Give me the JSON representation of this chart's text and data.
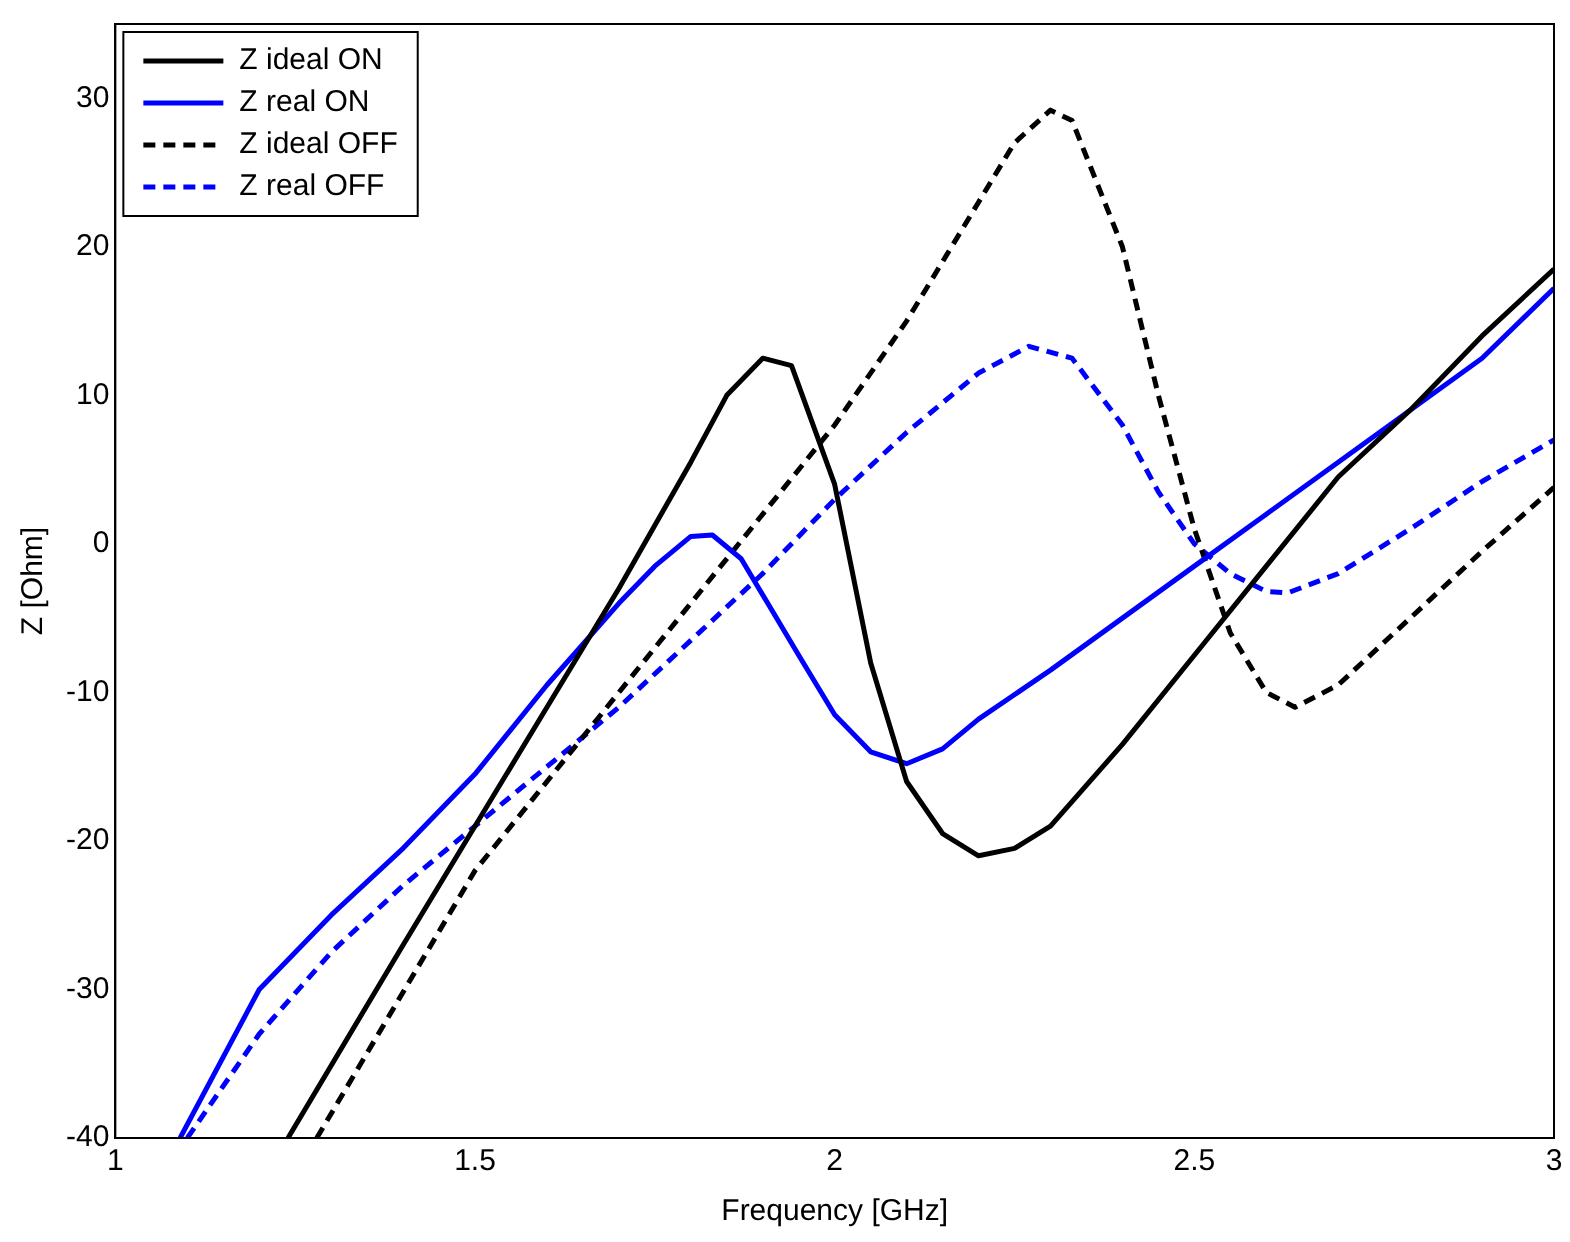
{
  "chart_data": {
    "type": "line",
    "xlabel": "Frequency [GHz]",
    "ylabel": "Z [Ohm]",
    "xlim": [
      1,
      3
    ],
    "xticks": [
      1,
      1.5,
      2,
      2.5,
      3
    ],
    "ylim": [
      -40,
      35
    ],
    "yticks": [
      -40,
      -30,
      -20,
      -10,
      0,
      10,
      20,
      30
    ],
    "grid": false,
    "legend": "top left",
    "marker": "none",
    "series": [
      {
        "name": "Z ideal ON",
        "color": "#000000",
        "line_style": "solid",
        "x": [
          1.24,
          1.4,
          1.6,
          1.7,
          1.8,
          1.85,
          1.9,
          1.94,
          2.0,
          2.05,
          2.1,
          2.15,
          2.2,
          2.25,
          2.3,
          2.4,
          2.5,
          2.6,
          2.7,
          2.8,
          2.9,
          3.0
        ],
        "values": [
          -40,
          -27,
          -11,
          -3,
          5.5,
          10,
          12.5,
          12,
          4,
          -8,
          -16,
          -19.5,
          -21,
          -20.5,
          -19,
          -13.5,
          -7.5,
          -1.5,
          4.5,
          9,
          14,
          18.5
        ]
      },
      {
        "name": "Z real ON",
        "color": "#0000ff",
        "line_style": "solid",
        "x": [
          1.09,
          1.2,
          1.3,
          1.4,
          1.5,
          1.6,
          1.7,
          1.75,
          1.8,
          1.83,
          1.87,
          1.95,
          2.0,
          2.05,
          2.1,
          2.15,
          2.2,
          2.3,
          2.4,
          2.5,
          2.6,
          2.7,
          2.8,
          2.9,
          3.0
        ],
        "values": [
          -40,
          -30,
          -25,
          -20.5,
          -15.5,
          -9.5,
          -4,
          -1.5,
          0.5,
          0.6,
          -1,
          -7.5,
          -11.5,
          -14,
          -14.8,
          -13.8,
          -11.8,
          -8.5,
          -5,
          -1.5,
          2,
          5.5,
          9,
          12.5,
          17.2
        ]
      },
      {
        "name": "Z ideal OFF",
        "color": "#000000",
        "line_style": "dashed",
        "x": [
          1.28,
          1.5,
          1.8,
          2.0,
          2.1,
          2.2,
          2.25,
          2.3,
          2.33,
          2.4,
          2.45,
          2.5,
          2.55,
          2.6,
          2.64,
          2.7,
          2.8,
          2.9,
          3.0
        ],
        "values": [
          -40,
          -22,
          -4,
          8,
          15,
          23,
          27,
          29.2,
          28.5,
          20,
          10,
          1,
          -6,
          -10,
          -11,
          -9.5,
          -5,
          -0.5,
          3.8
        ]
      },
      {
        "name": "Z real OFF",
        "color": "#0000ff",
        "line_style": "dashed",
        "x": [
          1.1,
          1.2,
          1.3,
          1.4,
          1.5,
          1.6,
          1.7,
          1.8,
          1.9,
          2.0,
          2.1,
          2.2,
          2.27,
          2.33,
          2.4,
          2.45,
          2.5,
          2.55,
          2.6,
          2.63,
          2.7,
          2.8,
          2.9,
          3.0
        ],
        "values": [
          -40,
          -33,
          -27.5,
          -23,
          -19,
          -15,
          -11,
          -6.5,
          -2,
          3,
          7.5,
          11.5,
          13.3,
          12.5,
          8,
          3.5,
          0,
          -2,
          -3.2,
          -3.3,
          -2,
          1,
          4.2,
          7
        ]
      }
    ]
  }
}
